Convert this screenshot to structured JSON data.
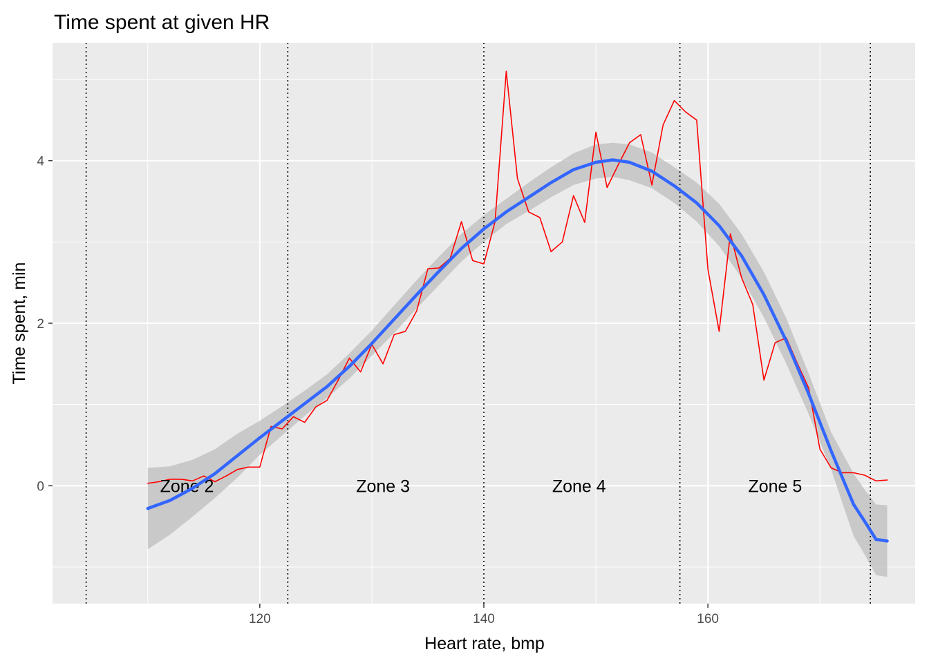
{
  "chart_data": {
    "type": "line",
    "title": "Time spent at given HR",
    "xlabel": "Heart rate, bmp",
    "ylabel": "Time spent, min",
    "xlim": [
      101.5,
      178.5
    ],
    "ylim": [
      -1.45,
      5.45
    ],
    "x_ticks": [
      120,
      140,
      160
    ],
    "y_ticks": [
      0,
      2,
      4
    ],
    "x_tick_labels": [
      "120",
      "140",
      "160"
    ],
    "y_tick_labels": [
      "0",
      "2",
      "4"
    ],
    "grid": true,
    "background": "#ebebeb",
    "colors": {
      "observed": "#ff0000",
      "smooth": "#3366ff",
      "confidence_band": "#bdbdbd",
      "zone_lines": "#000000"
    },
    "series": [
      {
        "style": "observed",
        "x": [
          110,
          111,
          112,
          113,
          114,
          115,
          116,
          117,
          118,
          119,
          120,
          121,
          122,
          123,
          124,
          125,
          126,
          127,
          128,
          129,
          130,
          131,
          132,
          133,
          134,
          135,
          136,
          137,
          138,
          139,
          140,
          141,
          142,
          143,
          144,
          145,
          146,
          147,
          148,
          149,
          150,
          151,
          152,
          153,
          154,
          155,
          156,
          157,
          158,
          159,
          160,
          161,
          162,
          163,
          164,
          165,
          166,
          167,
          168,
          169,
          170,
          171,
          172,
          173,
          174,
          175,
          176
        ],
        "y": [
          0.03,
          0.05,
          0.08,
          0.08,
          0.06,
          0.12,
          0.05,
          0.12,
          0.2,
          0.23,
          0.23,
          0.73,
          0.7,
          0.85,
          0.78,
          0.97,
          1.05,
          1.3,
          1.57,
          1.4,
          1.74,
          1.5,
          1.86,
          1.9,
          2.15,
          2.67,
          2.68,
          2.8,
          3.25,
          2.77,
          2.73,
          3.25,
          5.1,
          3.78,
          3.37,
          3.3,
          2.88,
          3.0,
          3.57,
          3.24,
          4.35,
          3.67,
          3.95,
          4.22,
          4.32,
          3.7,
          4.44,
          4.74,
          4.6,
          4.5,
          2.66,
          1.9,
          3.1,
          2.56,
          2.23,
          1.3,
          1.76,
          1.82,
          1.5,
          1.2,
          0.45,
          0.22,
          0.16,
          0.16,
          0.13,
          0.06,
          0.07
        ]
      },
      {
        "style": "smooth",
        "x": [
          110,
          112,
          114,
          116,
          118,
          120,
          122,
          124,
          126,
          128,
          130,
          132,
          134,
          136,
          138,
          140,
          142,
          144,
          146,
          148,
          150,
          151.5,
          153,
          155,
          157,
          159,
          161,
          163,
          165,
          167,
          169,
          171,
          173,
          174,
          175,
          176
        ],
        "y": [
          -0.28,
          -0.18,
          -0.03,
          0.15,
          0.37,
          0.59,
          0.8,
          1.01,
          1.22,
          1.47,
          1.75,
          2.05,
          2.35,
          2.64,
          2.92,
          3.16,
          3.37,
          3.55,
          3.73,
          3.89,
          3.98,
          4.01,
          3.98,
          3.87,
          3.69,
          3.48,
          3.2,
          2.83,
          2.35,
          1.78,
          1.13,
          0.43,
          -0.23,
          -0.44,
          -0.66,
          -0.68
        ]
      }
    ],
    "confidence_band": {
      "x": [
        110,
        112,
        114,
        116,
        118,
        120,
        122,
        124,
        126,
        128,
        130,
        132,
        134,
        136,
        138,
        140,
        142,
        144,
        146,
        148,
        150,
        151.5,
        153,
        155,
        157,
        159,
        161,
        163,
        165,
        167,
        169,
        171,
        173,
        174,
        175,
        176
      ],
      "lower": [
        -0.78,
        -0.6,
        -0.38,
        -0.15,
        0.1,
        0.38,
        0.62,
        0.86,
        1.08,
        1.32,
        1.6,
        1.88,
        2.18,
        2.47,
        2.76,
        3.0,
        3.22,
        3.38,
        3.55,
        3.7,
        3.78,
        3.8,
        3.76,
        3.66,
        3.48,
        3.25,
        2.95,
        2.56,
        2.07,
        1.5,
        0.88,
        0.2,
        -0.62,
        -0.85,
        -1.1,
        -1.12
      ],
      "upper": [
        0.22,
        0.24,
        0.32,
        0.45,
        0.64,
        0.8,
        0.98,
        1.17,
        1.37,
        1.63,
        1.91,
        2.22,
        2.53,
        2.82,
        3.1,
        3.33,
        3.53,
        3.73,
        3.92,
        4.09,
        4.2,
        4.22,
        4.2,
        4.1,
        3.92,
        3.73,
        3.47,
        3.1,
        2.63,
        2.06,
        1.38,
        0.66,
        0.15,
        -0.05,
        -0.23,
        -0.24
      ]
    },
    "zone_boundaries": [
      104.5,
      122.5,
      140,
      157.5,
      174.5
    ],
    "zone_labels": [
      {
        "text": "Zone 2",
        "x": 113.5,
        "y": 0
      },
      {
        "text": "Zone 3",
        "x": 131,
        "y": 0
      },
      {
        "text": "Zone 4",
        "x": 148.5,
        "y": 0
      },
      {
        "text": "Zone 5",
        "x": 166,
        "y": 0
      }
    ]
  }
}
